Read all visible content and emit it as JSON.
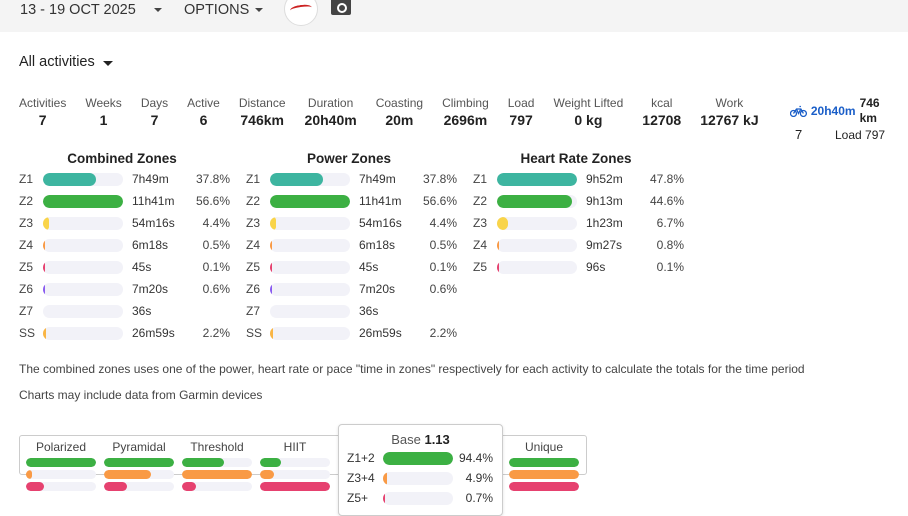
{
  "header": {
    "date_range": "13 - 19 OCT 2025",
    "options_label": "OPTIONS",
    "logo_icon": "athlete-avatar-logo",
    "camera_icon": "camera-icon"
  },
  "filter": {
    "label": "All activities"
  },
  "stats": [
    {
      "label": "Activities",
      "value": "7"
    },
    {
      "label": "Weeks",
      "value": "1"
    },
    {
      "label": "Days",
      "value": "7"
    },
    {
      "label": "Active",
      "value": "6"
    },
    {
      "label": "Distance",
      "value": "746km"
    },
    {
      "label": "Duration",
      "value": "20h40m"
    },
    {
      "label": "Coasting",
      "value": "20m"
    },
    {
      "label": "Climbing",
      "value": "2696m"
    },
    {
      "label": "Load",
      "value": "797"
    },
    {
      "label": "Weight Lifted",
      "value": "0 kg"
    },
    {
      "label": "kcal",
      "value": "12708"
    },
    {
      "label": "Work",
      "value": "12767 kJ"
    }
  ],
  "sport_summary": {
    "icon": "bike-icon",
    "duration": "20h40m",
    "distance": "746 km",
    "count": "7",
    "load": "Load 797",
    "accent": "#1a5ec8"
  },
  "colors": {
    "z1": "#3db5a0",
    "z2": "#3cb043",
    "z3": "#f9d44a",
    "z4": "#f99a45",
    "z5": "#e6416f",
    "z6": "#8a5cf0",
    "z7": "#555555",
    "ss": "#f9b545",
    "low": "#3cb043",
    "mid": "#f99a45",
    "high": "#e6416f"
  },
  "combined_zones": {
    "title": "Combined Zones",
    "rows": [
      {
        "zone": "Z1",
        "time": "7h49m",
        "pct": "37.8%",
        "fill": 0.668,
        "color": "z1"
      },
      {
        "zone": "Z2",
        "time": "11h41m",
        "pct": "56.6%",
        "fill": 1.0,
        "color": "z2"
      },
      {
        "zone": "Z3",
        "time": "54m16s",
        "pct": "4.4%",
        "fill": 0.078,
        "color": "z3"
      },
      {
        "zone": "Z4",
        "time": "6m18s",
        "pct": "0.5%",
        "fill": 0.01,
        "color": "z4"
      },
      {
        "zone": "Z5",
        "time": "45s",
        "pct": "0.1%",
        "fill": 0.002,
        "color": "z5"
      },
      {
        "zone": "Z6",
        "time": "7m20s",
        "pct": "0.6%",
        "fill": 0.011,
        "color": "z6"
      },
      {
        "zone": "Z7",
        "time": "36s",
        "pct": "",
        "fill": 0,
        "color": "z7"
      },
      {
        "zone": "SS",
        "time": "26m59s",
        "pct": "2.2%",
        "fill": 0.039,
        "color": "ss"
      }
    ]
  },
  "power_zones": {
    "title": "Power Zones",
    "rows": [
      {
        "zone": "Z1",
        "time": "7h49m",
        "pct": "37.8%",
        "fill": 0.668,
        "color": "z1"
      },
      {
        "zone": "Z2",
        "time": "11h41m",
        "pct": "56.6%",
        "fill": 1.0,
        "color": "z2"
      },
      {
        "zone": "Z3",
        "time": "54m16s",
        "pct": "4.4%",
        "fill": 0.078,
        "color": "z3"
      },
      {
        "zone": "Z4",
        "time": "6m18s",
        "pct": "0.5%",
        "fill": 0.01,
        "color": "z4"
      },
      {
        "zone": "Z5",
        "time": "45s",
        "pct": "0.1%",
        "fill": 0.002,
        "color": "z5"
      },
      {
        "zone": "Z6",
        "time": "7m20s",
        "pct": "0.6%",
        "fill": 0.011,
        "color": "z6"
      },
      {
        "zone": "Z7",
        "time": "36s",
        "pct": "",
        "fill": 0,
        "color": "z7"
      },
      {
        "zone": "SS",
        "time": "26m59s",
        "pct": "2.2%",
        "fill": 0.039,
        "color": "ss"
      }
    ]
  },
  "hr_zones": {
    "title": "Heart Rate Zones",
    "rows": [
      {
        "zone": "Z1",
        "time": "9h52m",
        "pct": "47.8%",
        "fill": 1.0,
        "color": "z1"
      },
      {
        "zone": "Z2",
        "time": "9h13m",
        "pct": "44.6%",
        "fill": 0.933,
        "color": "z2"
      },
      {
        "zone": "Z3",
        "time": "1h23m",
        "pct": "6.7%",
        "fill": 0.14,
        "color": "z3"
      },
      {
        "zone": "Z4",
        "time": "9m27s",
        "pct": "0.8%",
        "fill": 0.017,
        "color": "z4"
      },
      {
        "zone": "Z5",
        "time": "96s",
        "pct": "0.1%",
        "fill": 0.002,
        "color": "z5"
      }
    ]
  },
  "notes": {
    "combined": "The combined zones uses one of the power, heart rate or pace \"time in zones\" respectively for each activity to calculate the totals for the time period",
    "garmin": "Charts may include data from Garmin devices"
  },
  "distribution": {
    "models": [
      {
        "name": "Polarized",
        "fills": [
          1.0,
          0.08,
          0.26
        ]
      },
      {
        "name": "Pyramidal",
        "fills": [
          1.0,
          0.67,
          0.33
        ]
      },
      {
        "name": "Threshold",
        "fills": [
          0.6,
          1.0,
          0.2
        ]
      },
      {
        "name": "HIIT",
        "fills": [
          0.3,
          0.2,
          1.0
        ]
      },
      {
        "name": "Unique",
        "fills": [
          1.0,
          1.0,
          1.0
        ]
      }
    ],
    "popup": {
      "title_prefix": "Base",
      "title_value": "1.13",
      "rows": [
        {
          "label": "Z1+2",
          "pct": "94.4%",
          "fill": 1.0,
          "color": "low"
        },
        {
          "label": "Z3+4",
          "pct": "4.9%",
          "fill": 0.05,
          "color": "mid"
        },
        {
          "label": "Z5+",
          "pct": "0.7%",
          "fill": 0.01,
          "color": "high"
        }
      ]
    }
  }
}
